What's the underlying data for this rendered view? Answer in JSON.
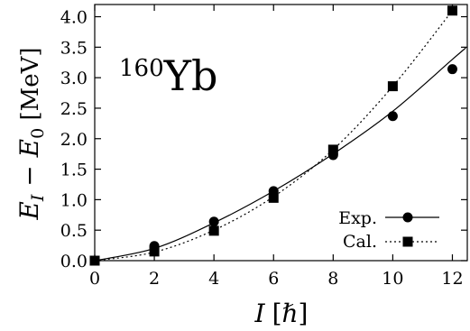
{
  "chart_data": {
    "type": "line",
    "x": [
      0,
      2,
      4,
      6,
      8,
      10,
      12
    ],
    "series": [
      {
        "name": "Exp.",
        "marker": "circle",
        "line": "solid",
        "values": [
          0.0,
          0.24,
          0.64,
          1.14,
          1.73,
          2.37,
          3.14
        ],
        "curve_values": [
          0.0,
          0.2,
          0.62,
          1.14,
          1.75,
          2.45,
          3.3
        ]
      },
      {
        "name": "Cal.",
        "marker": "square",
        "line": "dotted",
        "values": [
          0.0,
          0.15,
          0.49,
          1.03,
          1.82,
          2.86,
          4.1
        ],
        "curve_values": [
          0.0,
          0.14,
          0.5,
          1.05,
          1.82,
          2.86,
          4.1
        ]
      }
    ],
    "xlim": [
      0,
      12.5
    ],
    "ylim": [
      0,
      4.2
    ],
    "x_ticks": [
      "0",
      "2",
      "4",
      "6",
      "8",
      "10",
      "12"
    ],
    "y_ticks": [
      "0.0",
      "0.5",
      "1.0",
      "1.5",
      "2.0",
      "2.5",
      "3.0",
      "3.5",
      "4.0"
    ],
    "xlabel": {
      "var": "I",
      "unit": "[ℏ]"
    },
    "ylabel": {
      "main": "E",
      "sub1": "I",
      "minus": " − ",
      "main2": "E",
      "sub2": "0",
      "unit": " [MeV]"
    },
    "annotation": {
      "mass": "160",
      "element": "Yb"
    },
    "legend_position": "bottom-right",
    "grid": false,
    "colors": {
      "line": "#000000",
      "background": "#ffffff"
    }
  }
}
